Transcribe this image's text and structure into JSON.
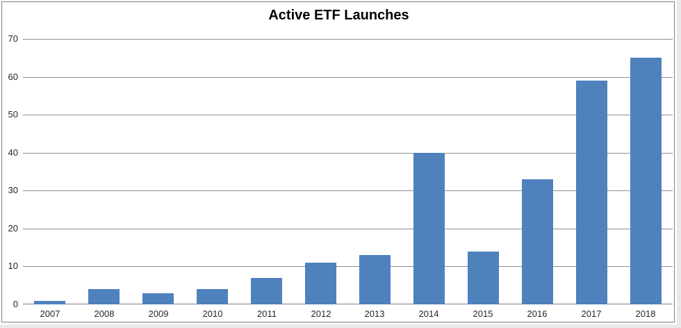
{
  "chart_data": {
    "type": "bar",
    "title": "Active ETF Launches",
    "categories": [
      "2007",
      "2008",
      "2009",
      "2010",
      "2011",
      "2012",
      "2013",
      "2014",
      "2015",
      "2016",
      "2017",
      "2018"
    ],
    "values": [
      1,
      4,
      3,
      4,
      7,
      11,
      13,
      40,
      14,
      33,
      59,
      65
    ],
    "xlabel": "",
    "ylabel": "",
    "ylim": [
      0,
      70
    ],
    "yticks": [
      0,
      10,
      20,
      30,
      40,
      50,
      60,
      70
    ],
    "grid": "horizontal",
    "legend": "none"
  },
  "colors": {
    "bar_fill": "#4F81BD",
    "gridline": "#8C8C8C",
    "axis_line": "#7F7F7F",
    "frame_border": "#7F7F7F",
    "title_text": "#000000",
    "tick_label_text": "#262626",
    "canvas_background": "#FFFFFF",
    "outer_edge": "#E9E9E9"
  }
}
